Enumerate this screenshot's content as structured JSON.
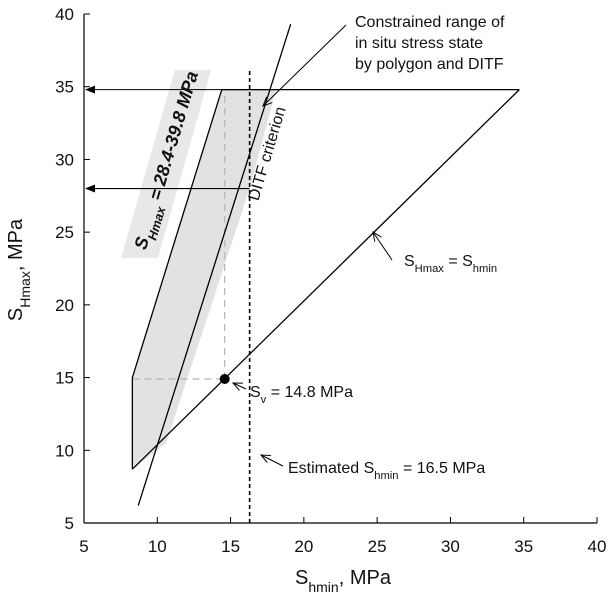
{
  "chart_data": {
    "type": "line",
    "xlim": [
      5,
      40
    ],
    "ylim": [
      5,
      40
    ],
    "xticks": [
      5,
      10,
      15,
      20,
      25,
      30,
      35,
      40
    ],
    "yticks": [
      5,
      10,
      15,
      20,
      25,
      30,
      35,
      40
    ],
    "xlabel": {
      "base": "S",
      "sub": "hmin",
      "tail": ", MPa"
    },
    "ylabel": {
      "base": "S",
      "sub": "Hmax",
      "tail": ", MPa"
    },
    "grid": false,
    "colors": {
      "line": "#000000",
      "fill": "#e2e2e2",
      "band": "#e8e8e8",
      "guide": "#b5b5b5"
    },
    "series": [
      {
        "id": "polygon",
        "x": [
          8.3,
          8.3,
          14.4,
          34.7
        ],
        "y": [
          8.7,
          15.0,
          34.8,
          34.8
        ]
      },
      {
        "id": "lower-bound",
        "x": [
          8.7,
          19.1
        ],
        "y": [
          6.2,
          39.3
        ]
      },
      {
        "id": "one-to-one",
        "x": [
          8.3,
          34.7
        ],
        "y": [
          8.7,
          34.8
        ]
      },
      {
        "id": "constrained-range",
        "x": [
          14.4,
          18.1,
          16.3,
          10.6,
          8.3,
          8.3
        ],
        "y": [
          34.8,
          34.8,
          28.0,
          10.5,
          8.7,
          15.0
        ]
      },
      {
        "id": "dtif-criterion",
        "x": [
          16.3,
          16.3
        ],
        "y": [
          5,
          34.8
        ]
      }
    ],
    "point": {
      "x": 14.6,
      "y": 14.9
    },
    "annotations": {
      "range_label": "S",
      "range_sub": "Hmax",
      "range_value": " = 28.4-39.8 MPa",
      "dtif_label": "DITF criterion",
      "constrained": [
        "Constrained range of",
        "in situ stress state",
        "by polygon and DITF"
      ],
      "sv_base": "S",
      "sv_sub": "v",
      "sv_value": " = 14.8 MPa",
      "est_base": "Estimated S",
      "est_sub": "hmin",
      "est_value": " = 16.5 MPa",
      "eq_left": "S",
      "eq_left_sub": "Hmax",
      "eq_mid": " = S",
      "eq_right_sub": "hmin"
    }
  }
}
